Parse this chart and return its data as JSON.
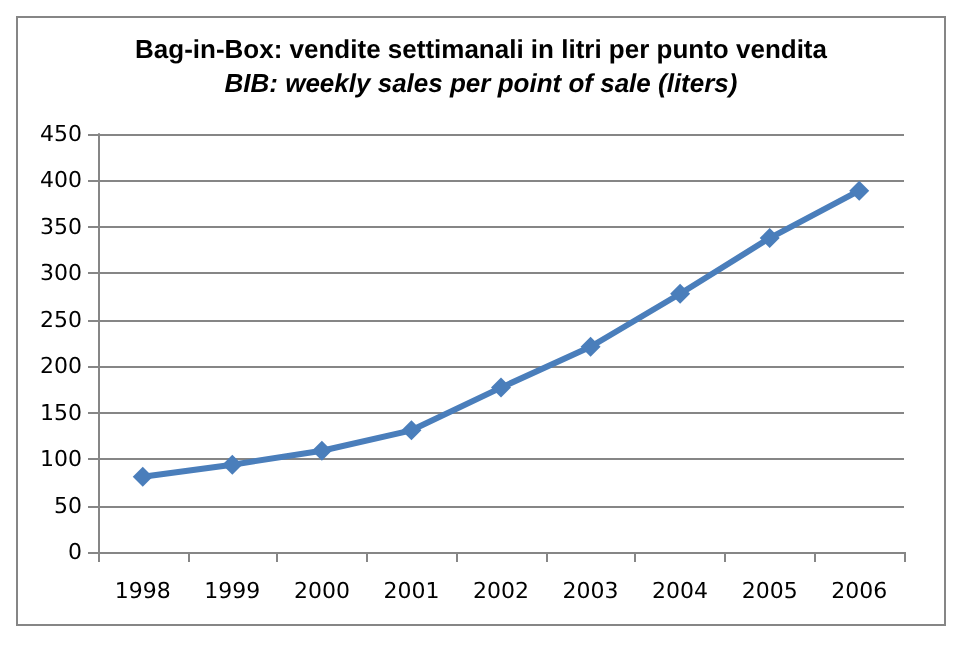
{
  "chart_data": {
    "type": "line",
    "title": "Bag-in-Box: vendite settimanali in litri per punto vendita",
    "subtitle": "BIB: weekly sales per point of sale (liters)",
    "categories": [
      "1998",
      "1999",
      "2000",
      "2001",
      "2002",
      "2003",
      "2004",
      "2005",
      "2006"
    ],
    "series": [
      {
        "color": "#4a7ebb",
        "values": [
          81,
          94,
          109,
          131,
          177,
          221,
          278,
          338,
          389
        ]
      }
    ],
    "ylim": [
      0,
      450
    ],
    "yticks": [
      0,
      50,
      100,
      150,
      200,
      250,
      300,
      350,
      400,
      450
    ],
    "grid": "y",
    "marker": "diamond",
    "line_style": "solid"
  }
}
